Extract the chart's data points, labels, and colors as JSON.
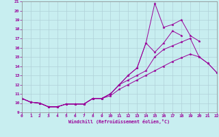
{
  "xlabel": "Windchill (Refroidissement éolien,°C)",
  "xlim": [
    0,
    22
  ],
  "ylim": [
    9,
    21
  ],
  "xticks": [
    0,
    1,
    2,
    3,
    4,
    5,
    6,
    7,
    8,
    9,
    10,
    11,
    12,
    13,
    14,
    15,
    16,
    17,
    18,
    19,
    20,
    21,
    22
  ],
  "yticks": [
    9,
    10,
    11,
    12,
    13,
    14,
    15,
    16,
    17,
    18,
    19,
    20,
    21
  ],
  "bg_color": "#c8eef0",
  "line_color": "#990099",
  "grid_color": "#b0d0d8",
  "series": [
    {
      "x": [
        0,
        1,
        2,
        3,
        4,
        5,
        6,
        7,
        8,
        9,
        10,
        11,
        12,
        13,
        14,
        15,
        16,
        17,
        18,
        19,
        20
      ],
      "y": [
        10.5,
        10.1,
        10.0,
        9.6,
        9.6,
        9.9,
        9.9,
        9.9,
        10.5,
        10.5,
        11.0,
        12.0,
        13.0,
        13.8,
        16.5,
        20.8,
        18.2,
        18.5,
        19.0,
        17.3,
        16.7
      ]
    },
    {
      "x": [
        0,
        1,
        2,
        3,
        4,
        5,
        6,
        7,
        8,
        9,
        10,
        11,
        12,
        13,
        14,
        15,
        16,
        17,
        18
      ],
      "y": [
        10.5,
        10.1,
        10.0,
        9.6,
        9.6,
        9.9,
        9.9,
        9.9,
        10.5,
        10.5,
        11.0,
        12.0,
        13.0,
        13.8,
        16.5,
        15.5,
        16.5,
        17.8,
        17.3
      ]
    },
    {
      "x": [
        0,
        1,
        2,
        3,
        4,
        5,
        6,
        7,
        8,
        9,
        10,
        11,
        12,
        13,
        14,
        15,
        16,
        17,
        18,
        19,
        20,
        21,
        22
      ],
      "y": [
        10.5,
        10.1,
        10.0,
        9.6,
        9.6,
        9.9,
        9.9,
        9.9,
        10.5,
        10.5,
        11.0,
        12.0,
        12.5,
        13.0,
        13.5,
        15.0,
        15.8,
        16.2,
        16.6,
        17.0,
        15.0,
        14.3,
        13.3
      ]
    },
    {
      "x": [
        0,
        1,
        2,
        3,
        4,
        5,
        6,
        7,
        8,
        9,
        10,
        11,
        12,
        13,
        14,
        15,
        16,
        17,
        18,
        19,
        20,
        21,
        22
      ],
      "y": [
        10.5,
        10.1,
        10.0,
        9.6,
        9.6,
        9.9,
        9.9,
        9.9,
        10.5,
        10.5,
        10.8,
        11.5,
        12.0,
        12.5,
        13.0,
        13.5,
        14.0,
        14.5,
        14.9,
        15.3,
        15.0,
        14.3,
        13.3
      ]
    }
  ]
}
